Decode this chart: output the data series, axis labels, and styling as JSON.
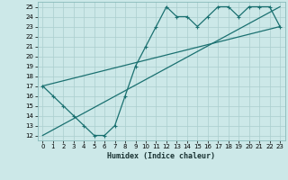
{
  "xlabel": "Humidex (Indice chaleur)",
  "xlim": [
    -0.5,
    23.5
  ],
  "ylim": [
    11.5,
    25.5
  ],
  "xticks": [
    0,
    1,
    2,
    3,
    4,
    5,
    6,
    7,
    8,
    9,
    10,
    11,
    12,
    13,
    14,
    15,
    16,
    17,
    18,
    19,
    20,
    21,
    22,
    23
  ],
  "yticks": [
    12,
    13,
    14,
    15,
    16,
    17,
    18,
    19,
    20,
    21,
    22,
    23,
    24,
    25
  ],
  "bg_color": "#cce8e8",
  "grid_color": "#aacece",
  "line_color": "#1a7070",
  "line1_x": [
    0,
    1,
    2,
    3,
    4,
    5,
    6,
    7,
    8,
    9,
    10,
    11,
    12,
    13,
    14,
    15,
    16,
    17,
    18,
    19,
    20,
    21,
    22,
    23
  ],
  "line1_y": [
    17,
    16,
    15,
    14,
    13,
    12,
    12,
    13,
    16,
    19,
    21,
    23,
    25,
    24,
    24,
    23,
    24,
    25,
    25,
    24,
    25,
    25,
    25,
    23
  ],
  "line2_x": [
    0,
    23
  ],
  "line2_y": [
    17,
    23
  ],
  "line3_x": [
    0,
    23
  ],
  "line3_y": [
    12,
    25
  ]
}
